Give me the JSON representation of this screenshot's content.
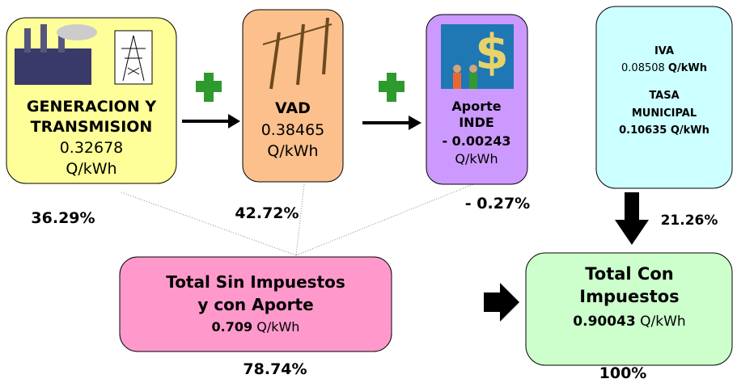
{
  "nodes": [
    {
      "lines": [
        "GENERACION Y",
        "TRANSMISION"
      ],
      "value": "0.32678",
      "unit": "Q/kWh",
      "percent": "36.29%"
    },
    {
      "lines": [
        "VAD"
      ],
      "value": "0.38465",
      "unit": "Q/kWh",
      "percent": "42.72%"
    },
    {
      "lines": [
        "Aporte",
        "INDE"
      ],
      "value": "- 0.00243",
      "unit": "Q/kWh",
      "percent": "- 0.27%"
    },
    {
      "lines": [
        "IVA"
      ],
      "value": "0.08508",
      "unit": "Q/kWh",
      "lines2": [
        "TASA",
        "MUNICIPAL"
      ],
      "value2": "0.10635 Q/kWh",
      "percent": "21.26%"
    },
    {
      "lines": [
        "Total Sin Impuestos",
        "y con Aporte"
      ],
      "value": "0.709",
      "unit": "Q/kWh",
      "percent": "78.74%"
    },
    {
      "lines": [
        "Total Con",
        "Impuestos"
      ],
      "value": "0.90043",
      "unit": "Q/kWh",
      "percent": "100%"
    }
  ]
}
